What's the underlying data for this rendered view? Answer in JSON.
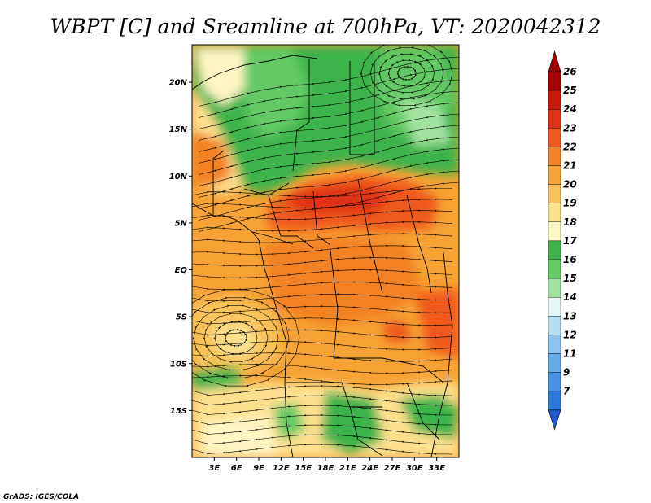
{
  "title": "WBPT [C] and Sreamline at 700hPa, VT: 2020042312",
  "credit": "GrADS: IGES/COLA",
  "map": {
    "lon_range": [
      0,
      36
    ],
    "lat_range": [
      -20,
      24
    ],
    "lat_ticks": [
      {
        "value": 20,
        "label": "20N"
      },
      {
        "value": 15,
        "label": "15N"
      },
      {
        "value": 10,
        "label": "10N"
      },
      {
        "value": 5,
        "label": "5N"
      },
      {
        "value": 0,
        "label": "EQ"
      },
      {
        "value": -5,
        "label": "5S"
      },
      {
        "value": -10,
        "label": "10S"
      },
      {
        "value": -15,
        "label": "15S"
      }
    ],
    "lon_ticks": [
      {
        "value": 3,
        "label": "3E"
      },
      {
        "value": 6,
        "label": "6E"
      },
      {
        "value": 9,
        "label": "9E"
      },
      {
        "value": 12,
        "label": "12E"
      },
      {
        "value": 15,
        "label": "15E"
      },
      {
        "value": 18,
        "label": "18E"
      },
      {
        "value": 21,
        "label": "21E"
      },
      {
        "value": 24,
        "label": "24E"
      },
      {
        "value": 27,
        "label": "27E"
      },
      {
        "value": 30,
        "label": "30E"
      },
      {
        "value": 33,
        "label": "33E"
      }
    ]
  },
  "colorbar": {
    "levels": [
      {
        "label": "26",
        "color": "#a50000"
      },
      {
        "label": "25",
        "color": "#c81a0a"
      },
      {
        "label": "24",
        "color": "#e03214"
      },
      {
        "label": "23",
        "color": "#ee5a1c"
      },
      {
        "label": "22",
        "color": "#f28224"
      },
      {
        "label": "21",
        "color": "#f6a234"
      },
      {
        "label": "20",
        "color": "#f9c25a"
      },
      {
        "label": "19",
        "color": "#fde08e"
      },
      {
        "label": "18",
        "color": "#fff6c2"
      },
      {
        "label": "17",
        "color": "#3cb44a"
      },
      {
        "label": "16",
        "color": "#64ca64"
      },
      {
        "label": "15",
        "color": "#a0e4a0"
      },
      {
        "label": "14",
        "color": "#e6f7f7"
      },
      {
        "label": "13",
        "color": "#b4dcf5"
      },
      {
        "label": "12",
        "color": "#8cc3f0"
      },
      {
        "label": "11",
        "color": "#64aaeb"
      },
      {
        "label": "9",
        "color": "#4690e6"
      },
      {
        "label": "7",
        "color": "#2d78dc"
      }
    ],
    "bottom_color": "#1e5ad2"
  }
}
